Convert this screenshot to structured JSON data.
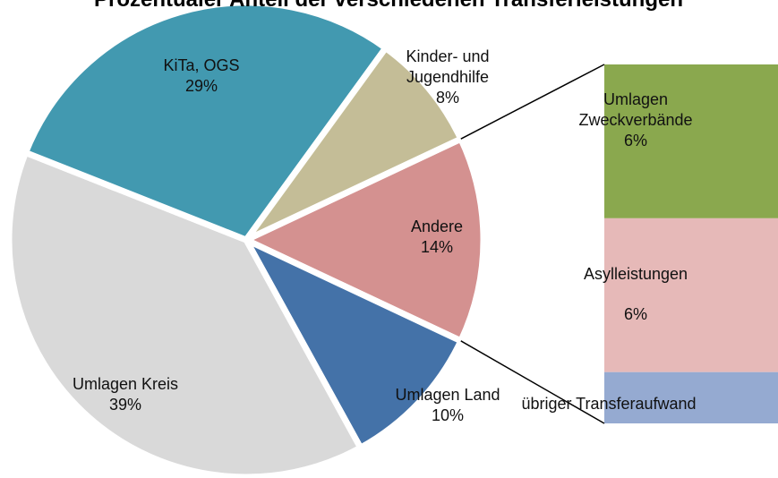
{
  "chart_data": {
    "type": "pie-of-bar",
    "title": "Prozentualer Anteil der verschiedenen Transferleistungen",
    "categories": [
      "Andere",
      "Umlagen Land",
      "Umlagen Kreis",
      "KiTa, OGS",
      "Kinder- und Jugendhilfe"
    ],
    "values": [
      14,
      10,
      39,
      29,
      8
    ],
    "value_labels": [
      "14%",
      "10%",
      "39%",
      "29%",
      "8%"
    ],
    "colors": [
      "#d49190",
      "#4472a8",
      "#d9d9d9",
      "#4299b0",
      "#c4bd97"
    ],
    "bar": {
      "categories": [
        "Umlagen Zweckverbände",
        "Asylleistungen",
        "übriger Transferaufwand"
      ],
      "values": [
        6,
        6,
        2
      ],
      "value_labels": [
        "6%",
        "6%",
        null
      ],
      "colors": [
        "#8aa84e",
        "#e6b9b8",
        "#95aad1"
      ]
    }
  }
}
